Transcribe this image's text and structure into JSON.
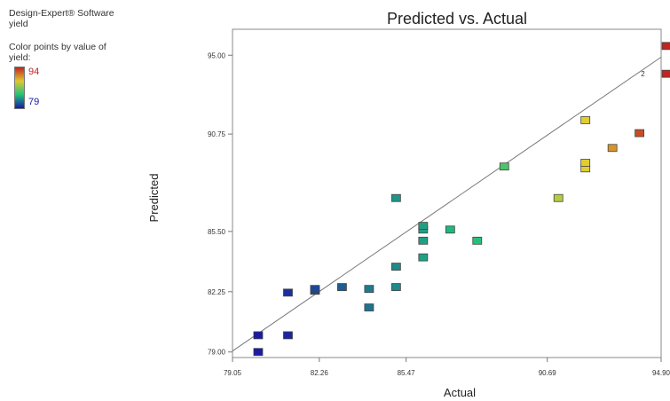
{
  "sidebar": {
    "software_line1": "Design-Expert® Software",
    "software_line2": "yield",
    "color_line1": "Color points by value of",
    "color_line2": "yield:",
    "legend_high": "94",
    "legend_low": "79"
  },
  "chart_data": {
    "type": "scatter",
    "title": "Predicted vs. Actual",
    "xlabel": "Actual",
    "ylabel": "Predicted",
    "xlim": [
      79.05,
      94.9
    ],
    "ylim": [
      78.7,
      96.4
    ],
    "x_ticks": [
      "79.05",
      "82.26",
      "85.47",
      "90.69",
      "94.90"
    ],
    "x_tick_values": [
      79.05,
      82.26,
      85.47,
      90.69,
      94.9
    ],
    "y_ticks": [
      "79.00",
      "82.25",
      "85.50",
      "90.75",
      "95.00"
    ],
    "y_tick_values": [
      79.0,
      82.25,
      85.5,
      90.75,
      95.0
    ],
    "color_scale": {
      "min": 79,
      "max": 94,
      "low_color": "#1a1aa6",
      "mid_color": "#22c27a",
      "high_color": "#c0261f"
    },
    "reference_line": {
      "from": [
        79.05,
        79.05
      ],
      "to": [
        94.9,
        94.9
      ]
    },
    "annotations": [
      {
        "x": 94.3,
        "y": 94.0,
        "text": "2"
      }
    ],
    "points": [
      {
        "x": 80.0,
        "y": 79.0,
        "yield": 79
      },
      {
        "x": 80.0,
        "y": 79.9,
        "yield": 79
      },
      {
        "x": 81.1,
        "y": 79.9,
        "yield": 79.5
      },
      {
        "x": 81.1,
        "y": 82.2,
        "yield": 80
      },
      {
        "x": 82.1,
        "y": 82.3,
        "yield": 81
      },
      {
        "x": 82.1,
        "y": 82.4,
        "yield": 81
      },
      {
        "x": 83.1,
        "y": 82.5,
        "yield": 82
      },
      {
        "x": 84.1,
        "y": 81.4,
        "yield": 83
      },
      {
        "x": 84.1,
        "y": 82.4,
        "yield": 83.3
      },
      {
        "x": 85.1,
        "y": 82.5,
        "yield": 84
      },
      {
        "x": 85.1,
        "y": 83.6,
        "yield": 84
      },
      {
        "x": 85.1,
        "y": 87.3,
        "yield": 84.5
      },
      {
        "x": 86.1,
        "y": 84.1,
        "yield": 85
      },
      {
        "x": 86.1,
        "y": 85.0,
        "yield": 85
      },
      {
        "x": 86.1,
        "y": 85.6,
        "yield": 85
      },
      {
        "x": 86.1,
        "y": 85.8,
        "yield": 85
      },
      {
        "x": 87.1,
        "y": 85.6,
        "yield": 86
      },
      {
        "x": 88.1,
        "y": 85.0,
        "yield": 86.5
      },
      {
        "x": 89.1,
        "y": 89.0,
        "yield": 87.5
      },
      {
        "x": 91.1,
        "y": 87.3,
        "yield": 90
      },
      {
        "x": 92.1,
        "y": 88.9,
        "yield": 91
      },
      {
        "x": 92.1,
        "y": 89.2,
        "yield": 91
      },
      {
        "x": 92.1,
        "y": 91.5,
        "yield": 91
      },
      {
        "x": 93.1,
        "y": 90.0,
        "yield": 92
      },
      {
        "x": 94.1,
        "y": 90.8,
        "yield": 93.3
      },
      {
        "x": 95.1,
        "y": 94.0,
        "yield": 94
      },
      {
        "x": 95.1,
        "y": 95.5,
        "yield": 94
      }
    ]
  }
}
